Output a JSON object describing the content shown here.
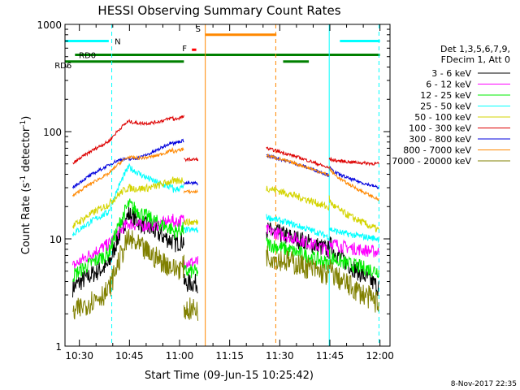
{
  "chart_data": {
    "type": "line",
    "title": "HESSI Observing Summary Count Rates",
    "xlabel": "Start Time (09-Jun-15 10:25:42)",
    "ylabel": "Count Rate (s⁻¹ detector⁻¹)",
    "ylabel_main": "Count Rate (s",
    "ylabel_sup1": "-1",
    "ylabel_mid": " detector",
    "ylabel_sup2": "-1",
    "ylabel_end": ")",
    "footer": "8-Nov-2017 22:35",
    "x_scale": "time",
    "y_scale": "log",
    "xlim": [
      "10:25:42",
      "12:03:00"
    ],
    "ylim": [
      1,
      1000
    ],
    "x_ticks": [
      {
        "label": "10:30",
        "min": 30
      },
      {
        "label": "10:45",
        "min": 45
      },
      {
        "label": "11:00",
        "min": 60
      },
      {
        "label": "11:15",
        "min": 75
      },
      {
        "label": "11:30",
        "min": 90
      },
      {
        "label": "11:45",
        "min": 105
      },
      {
        "label": "12:00",
        "min": 120
      }
    ],
    "y_ticks": [
      {
        "label": "1",
        "value": 1
      },
      {
        "label": "10",
        "value": 10
      },
      {
        "label": "100",
        "value": 100
      },
      {
        "label": "1000",
        "value": 1000
      }
    ],
    "legend_header": [
      "Det 1,3,5,6,7,9,",
      "FDecim 1, Att 0"
    ],
    "legend_placement": "right",
    "series": [
      {
        "name": "3 - 6 keV",
        "color": "#000000"
      },
      {
        "name": "6 - 12 keV",
        "color": "#ff00ff"
      },
      {
        "name": "12 - 25 keV",
        "color": "#00ee00"
      },
      {
        "name": "25 - 50 keV",
        "color": "#00ffff"
      },
      {
        "name": "50 - 100 keV",
        "color": "#d4d400"
      },
      {
        "name": "100 - 300 keV",
        "color": "#dd0000"
      },
      {
        "name": "300 - 800 keV",
        "color": "#0000dd"
      },
      {
        "name": "800 - 7000 keV",
        "color": "#ff8800"
      },
      {
        "name": "7000 - 20000 keV",
        "color": "#808000"
      }
    ],
    "flag_bars": [
      {
        "label": "N",
        "color": "#00ffff",
        "y": 700,
        "segments": [
          [
            25.7,
            38.8
          ],
          [
            108.0,
            120.0
          ]
        ]
      },
      {
        "label": "S",
        "color": "#ff8800",
        "y": 800,
        "segments": [
          [
            67.7,
            89.0
          ]
        ]
      },
      {
        "label": "F",
        "color": "#ff0000",
        "y": 580,
        "segments": [
          [
            63.7,
            65.0
          ]
        ]
      },
      {
        "label": "RD0",
        "color": "#008000",
        "y": 520,
        "segments": [
          [
            28.7,
            120.0
          ]
        ]
      },
      {
        "label": "RD6",
        "color": "#008000",
        "y": 450,
        "segments": [
          [
            25.7,
            61.3
          ],
          [
            91.0,
            98.7
          ]
        ]
      }
    ],
    "markers": [
      {
        "type": "solid",
        "color": "#00ffff",
        "min": 25.7
      },
      {
        "type": "dashed",
        "color": "#00ffff",
        "min": 39.7
      },
      {
        "type": "solid",
        "color": "#ff8800",
        "min": 67.7
      },
      {
        "type": "dashed",
        "color": "#ff8800",
        "min": 88.8
      },
      {
        "type": "solid",
        "color": "#00ffff",
        "min": 104.8
      },
      {
        "type": "dashed",
        "color": "#00ffff",
        "min": 119.7
      }
    ],
    "gaps": [
      [
        65.6,
        85.5
      ]
    ],
    "profiles": {
      "3 - 6 keV": {
        "pre": 3.5,
        "peak": 17,
        "postStart": 12,
        "postEnd": 3.5,
        "noise": 0.18
      },
      "6 - 12 keV": {
        "pre": 5.5,
        "peak": 14,
        "postStart": 12,
        "postEnd": 7.5,
        "noise": 0.12
      },
      "12 - 25 keV": {
        "pre": 4.5,
        "peak": 21,
        "postStart": 9,
        "postEnd": 5,
        "noise": 0.14
      },
      "25 - 50 keV": {
        "pre": 11,
        "peak": 47,
        "postStart": 16,
        "postEnd": 10,
        "noise": 0.06
      },
      "50 - 100 keV": {
        "pre": 13,
        "peak": 30,
        "postStart": 30,
        "postEnd": 12,
        "noise": 0.07
      },
      "100 - 300 keV": {
        "pre": 50,
        "peak": 125,
        "postStart": 70,
        "postEnd": 50,
        "noise": 0.03
      },
      "300 - 800 keV": {
        "pre": 30,
        "peak": 55,
        "postStart": 60,
        "postEnd": 30,
        "noise": 0.03
      },
      "800 - 7000 keV": {
        "pre": 25,
        "peak": 58,
        "postStart": 60,
        "postEnd": 23,
        "noise": 0.03
      },
      "7000 - 20000 keV": {
        "pre": 2,
        "peak": 10,
        "postStart": 7,
        "postEnd": 2.5,
        "noise": 0.22
      }
    }
  }
}
